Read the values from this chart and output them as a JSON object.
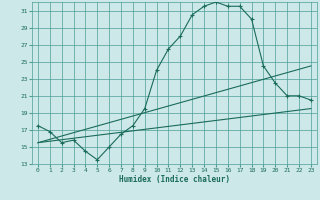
{
  "xlabel": "Humidex (Indice chaleur)",
  "bg_color": "#cce8e8",
  "grid_color": "#4d9e96",
  "line_color": "#1a6b5a",
  "xlim": [
    -0.5,
    23.5
  ],
  "ylim": [
    13,
    32
  ],
  "yticks": [
    13,
    15,
    17,
    19,
    21,
    23,
    25,
    27,
    29,
    31
  ],
  "xticks": [
    0,
    1,
    2,
    3,
    4,
    5,
    6,
    7,
    8,
    9,
    10,
    11,
    12,
    13,
    14,
    15,
    16,
    17,
    18,
    19,
    20,
    21,
    22,
    23
  ],
  "curve1_x": [
    0,
    1,
    2,
    3,
    4,
    5,
    6,
    7,
    8,
    9,
    10,
    11,
    12,
    13,
    14,
    15,
    16,
    17,
    18,
    19,
    20,
    21,
    22,
    23
  ],
  "curve1_y": [
    17.5,
    16.8,
    15.5,
    15.8,
    14.5,
    13.5,
    15.0,
    16.5,
    17.5,
    19.5,
    24.0,
    26.5,
    28.0,
    30.5,
    31.5,
    32.0,
    31.5,
    31.5,
    30.0,
    24.5,
    22.5,
    21.0,
    21.0,
    20.5
  ],
  "curve2_x": [
    0,
    23
  ],
  "curve2_y": [
    15.5,
    19.5
  ],
  "curve3_x": [
    0,
    23
  ],
  "curve3_y": [
    15.5,
    24.5
  ],
  "figsize": [
    3.2,
    2.0
  ],
  "dpi": 100
}
